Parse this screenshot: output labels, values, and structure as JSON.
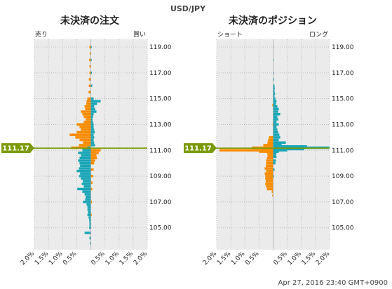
{
  "header": {
    "pair": "USD/JPY"
  },
  "footer": {
    "timestamp": "Apr 27, 2016 23:40 GMT+0900"
  },
  "colors": {
    "sell": "#f78c00",
    "buy": "#1aa6b7",
    "price_line": "#7a9a01",
    "plot_bg": "#ebebeb",
    "grid": "#bdbdbd"
  },
  "chart_data": [
    {
      "type": "bar",
      "orientation": "horizontal",
      "title": "未決済の注文",
      "left_label": "売り",
      "right_label": "買い",
      "current_price": "111.17",
      "current_price_value": 111.17,
      "ylim": [
        103.3,
        119.6
      ],
      "y_ticks": [
        "105.00",
        "107.00",
        "109.00",
        "111.00",
        "113.00",
        "115.00",
        "117.00",
        "119.00"
      ],
      "x_ticks": [
        "2.0%",
        "1.5%",
        "1.0%",
        "0.5%",
        "0.5%",
        "1.0%",
        "1.5%",
        "2.0%"
      ],
      "xlim": [
        -2.0,
        2.0
      ],
      "series": [
        {
          "side": "sell",
          "points": [
            [
              119.0,
              0.05
            ],
            [
              118.5,
              0.04
            ],
            [
              118.0,
              0.06
            ],
            [
              117.5,
              0.05
            ],
            [
              117.0,
              0.05
            ],
            [
              116.5,
              0.07
            ],
            [
              116.0,
              0.07
            ],
            [
              115.5,
              0.08
            ],
            [
              115.0,
              0.12
            ],
            [
              114.8,
              0.15
            ],
            [
              114.6,
              0.16
            ],
            [
              114.4,
              0.22
            ],
            [
              114.2,
              0.2
            ],
            [
              114.0,
              0.35
            ],
            [
              113.8,
              0.3
            ],
            [
              113.6,
              0.25
            ],
            [
              113.4,
              0.18
            ],
            [
              113.2,
              0.25
            ],
            [
              113.0,
              0.5
            ],
            [
              112.8,
              0.4
            ],
            [
              112.6,
              0.35
            ],
            [
              112.4,
              0.5
            ],
            [
              112.2,
              0.75
            ],
            [
              112.0,
              0.55
            ],
            [
              111.8,
              0.4
            ],
            [
              111.6,
              0.28
            ],
            [
              111.4,
              0.42
            ],
            [
              111.2,
              0.7
            ]
          ]
        },
        {
          "side": "buy",
          "points": [
            [
              111.2,
              0.12
            ],
            [
              111.0,
              0.3
            ],
            [
              110.8,
              0.45
            ],
            [
              110.6,
              0.35
            ],
            [
              110.4,
              0.4
            ],
            [
              110.2,
              0.45
            ],
            [
              110.0,
              0.4
            ],
            [
              109.8,
              0.38
            ],
            [
              109.6,
              0.42
            ],
            [
              109.4,
              0.5
            ],
            [
              109.2,
              0.38
            ],
            [
              109.0,
              0.42
            ],
            [
              108.8,
              0.35
            ],
            [
              108.6,
              0.28
            ],
            [
              108.4,
              0.32
            ],
            [
              108.2,
              0.25
            ],
            [
              108.0,
              0.48
            ],
            [
              107.8,
              0.3
            ],
            [
              107.6,
              0.22
            ],
            [
              107.4,
              0.18
            ],
            [
              107.2,
              0.2
            ],
            [
              107.0,
              0.28
            ],
            [
              106.8,
              0.15
            ],
            [
              106.6,
              0.12
            ],
            [
              106.4,
              0.12
            ],
            [
              106.2,
              0.1
            ],
            [
              106.0,
              0.12
            ],
            [
              105.8,
              0.08
            ],
            [
              105.6,
              0.06
            ],
            [
              105.4,
              0.05
            ],
            [
              105.2,
              0.05
            ],
            [
              105.0,
              0.06
            ],
            [
              104.6,
              0.22
            ],
            [
              104.2,
              0.05
            ],
            [
              103.8,
              0.03
            ]
          ]
        },
        {
          "side": "sell",
          "points": [
            [
              111.0,
              0.35
            ],
            [
              110.8,
              0.28
            ],
            [
              110.6,
              0.2
            ],
            [
              110.4,
              0.22
            ],
            [
              110.2,
              0.15
            ],
            [
              110.0,
              0.12
            ],
            [
              109.5,
              0.1
            ],
            [
              109.0,
              0.08
            ],
            [
              108.5,
              0.06
            ],
            [
              108.0,
              0.05
            ],
            [
              107.0,
              0.04
            ],
            [
              106.0,
              0.03
            ]
          ]
        },
        {
          "side": "buy",
          "points": [
            [
              119.0,
              0.03
            ],
            [
              118.0,
              0.03
            ],
            [
              117.0,
              0.04
            ],
            [
              116.0,
              0.05
            ],
            [
              115.0,
              0.1
            ],
            [
              114.8,
              0.35
            ],
            [
              114.6,
              0.22
            ],
            [
              114.4,
              0.12
            ],
            [
              114.2,
              0.15
            ],
            [
              114.0,
              0.2
            ],
            [
              113.8,
              0.1
            ],
            [
              113.6,
              0.08
            ],
            [
              113.4,
              0.06
            ],
            [
              113.2,
              0.08
            ],
            [
              113.0,
              0.1
            ],
            [
              112.8,
              0.1
            ],
            [
              112.6,
              0.12
            ],
            [
              112.4,
              0.14
            ],
            [
              112.2,
              0.1
            ],
            [
              112.0,
              0.12
            ],
            [
              111.8,
              0.1
            ],
            [
              111.6,
              0.12
            ],
            [
              111.4,
              0.15
            ]
          ]
        }
      ]
    },
    {
      "type": "bar",
      "orientation": "horizontal",
      "title": "未決済のポジション",
      "left_label": "ショート",
      "right_label": "ロング",
      "current_price": "111.17",
      "current_price_value": 111.17,
      "ylim": [
        103.3,
        119.6
      ],
      "y_ticks": [
        "105.00",
        "107.00",
        "109.00",
        "111.00",
        "113.00",
        "115.00",
        "117.00",
        "119.00"
      ],
      "x_ticks": [
        "2.0%",
        "1.5%",
        "1.0%",
        "0.5%",
        "0.5%",
        "1.0%",
        "1.5%",
        "2.0%"
      ],
      "xlim": [
        -2.0,
        2.0
      ],
      "series": [
        {
          "side": "long",
          "points": [
            [
              119.0,
              0.01
            ],
            [
              118.0,
              0.02
            ],
            [
              117.0,
              0.02
            ],
            [
              116.5,
              0.03
            ],
            [
              116.0,
              0.05
            ],
            [
              115.8,
              0.06
            ],
            [
              115.6,
              0.05
            ],
            [
              115.4,
              0.07
            ],
            [
              115.2,
              0.05
            ],
            [
              115.0,
              0.08
            ],
            [
              114.8,
              0.12
            ],
            [
              114.6,
              0.1
            ],
            [
              114.4,
              0.15
            ],
            [
              114.2,
              0.2
            ],
            [
              114.0,
              0.18
            ],
            [
              113.8,
              0.25
            ],
            [
              113.6,
              0.15
            ],
            [
              113.4,
              0.18
            ],
            [
              113.2,
              0.12
            ],
            [
              113.0,
              0.2
            ],
            [
              112.8,
              0.12
            ],
            [
              112.6,
              0.15
            ],
            [
              112.4,
              0.18
            ],
            [
              112.2,
              0.22
            ],
            [
              112.0,
              0.25
            ],
            [
              111.8,
              0.2
            ],
            [
              111.6,
              0.45
            ],
            [
              111.5,
              0.3
            ],
            [
              111.4,
              0.3
            ],
            [
              111.3,
              1.2
            ],
            [
              111.2,
              2.0
            ],
            [
              111.1,
              1.1
            ],
            [
              111.0,
              0.5
            ],
            [
              110.9,
              0.2
            ],
            [
              110.7,
              0.1
            ],
            [
              110.5,
              0.12
            ],
            [
              110.2,
              0.1
            ],
            [
              110.0,
              0.08
            ],
            [
              109.5,
              0.05
            ],
            [
              109.0,
              0.03
            ]
          ]
        },
        {
          "side": "short",
          "points": [
            [
              114.5,
              0.03
            ],
            [
              113.0,
              0.02
            ],
            [
              112.0,
              0.05
            ],
            [
              111.8,
              0.1
            ],
            [
              111.6,
              0.15
            ],
            [
              111.4,
              0.25
            ],
            [
              111.2,
              0.75
            ],
            [
              111.0,
              1.9
            ],
            [
              110.9,
              0.5
            ],
            [
              110.8,
              0.22
            ],
            [
              110.6,
              0.2
            ],
            [
              110.4,
              0.22
            ],
            [
              110.2,
              0.25
            ],
            [
              110.0,
              0.25
            ],
            [
              109.8,
              0.26
            ],
            [
              109.6,
              0.3
            ],
            [
              109.4,
              0.25
            ],
            [
              109.2,
              0.3
            ],
            [
              109.0,
              0.28
            ],
            [
              108.8,
              0.28
            ],
            [
              108.6,
              0.26
            ],
            [
              108.4,
              0.28
            ],
            [
              108.2,
              0.25
            ],
            [
              108.0,
              0.22
            ],
            [
              107.8,
              0.05
            ],
            [
              107.5,
              0.03
            ]
          ]
        },
        {
          "side": "short",
          "points": [
            [
              112.0,
              0.15
            ],
            [
              111.8,
              0.18
            ],
            [
              111.6,
              0.2
            ],
            [
              111.4,
              0.35
            ],
            [
              111.2,
              0.4
            ],
            [
              111.0,
              0.3
            ],
            [
              110.5,
              0.05
            ]
          ]
        },
        {
          "side": "long",
          "points": [
            [
              111.0,
              0.15
            ],
            [
              110.8,
              0.12
            ],
            [
              110.6,
              0.08
            ]
          ]
        }
      ]
    }
  ]
}
